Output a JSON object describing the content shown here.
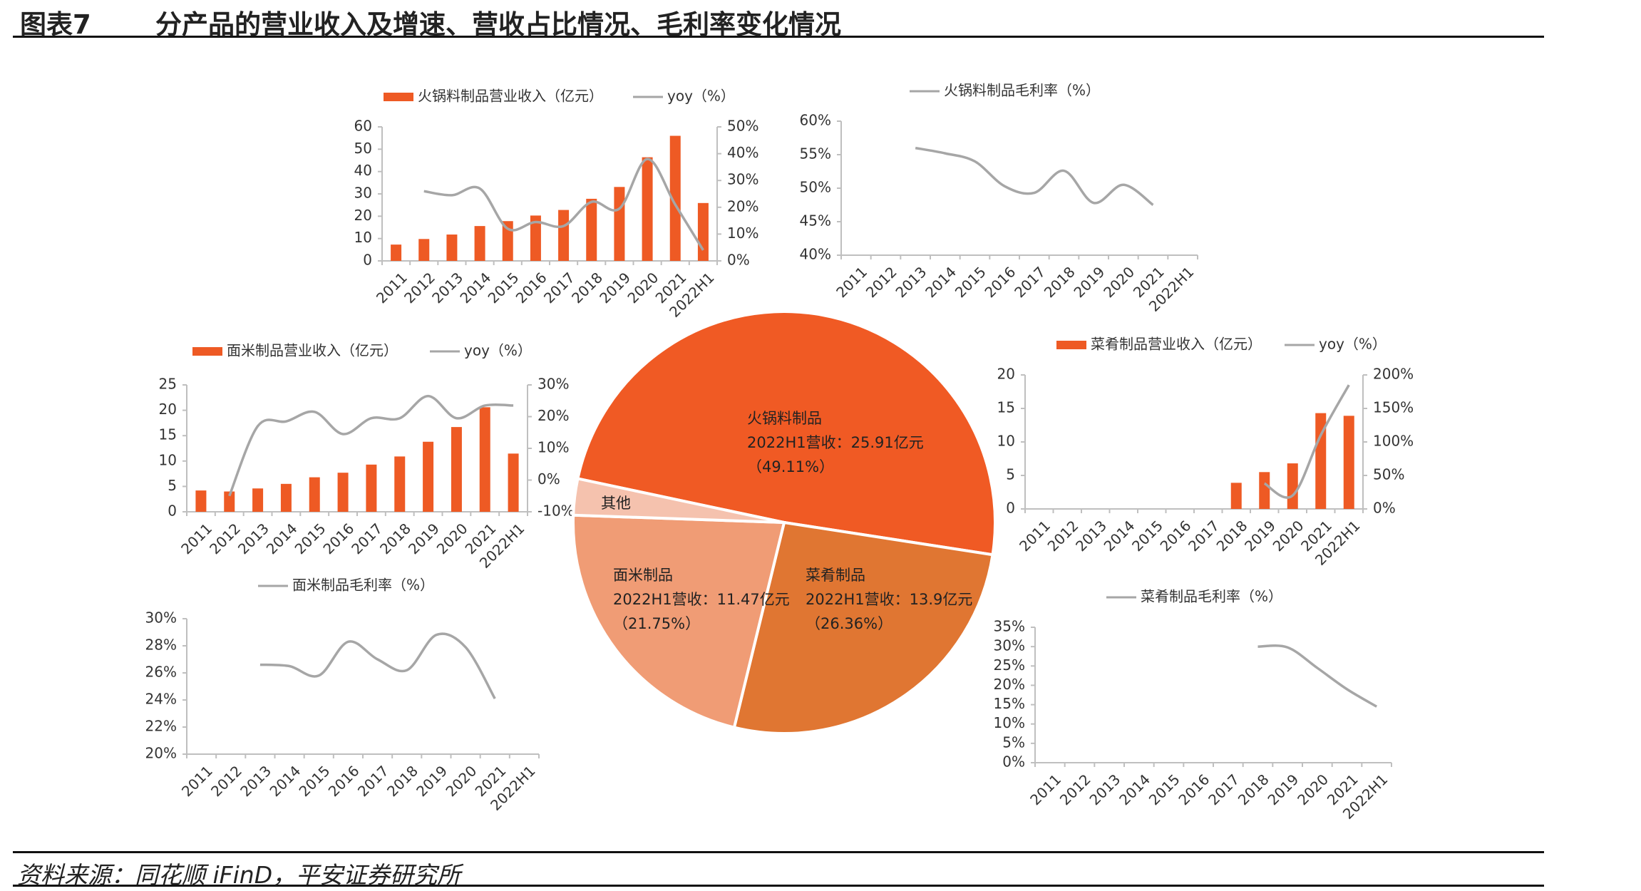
{
  "figure": {
    "number": "图表7",
    "title": "分产品的营业收入及增速、营收占比情况、毛利率变化情况",
    "source": "资料来源：同花顺 iFinD，平安证券研究所"
  },
  "colors": {
    "bar": "#EE5A24",
    "line": "#A6A6A6",
    "axis": "#BFBFBF",
    "text": "#333333",
    "pie": [
      "#F05A24",
      "#E07632",
      "#F09C75",
      "#F5C2AE"
    ]
  },
  "chart_data": [
    {
      "id": "hotpot-revenue",
      "type": "bar",
      "categories": [
        "2011",
        "2012",
        "2013",
        "2014",
        "2015",
        "2016",
        "2017",
        "2018",
        "2019",
        "2020",
        "2021",
        "2022H1"
      ],
      "series": [
        {
          "name": "火锅料制品营业收入（亿元）",
          "type": "bar",
          "axis": "left",
          "values": [
            7.3,
            9.8,
            11.8,
            15.6,
            17.8,
            20.3,
            22.8,
            27.8,
            33.1,
            46.4,
            56.0,
            25.91
          ]
        },
        {
          "name": "yoy（%）",
          "type": "line",
          "axis": "right",
          "values": [
            null,
            26.0,
            24.5,
            27.0,
            12.0,
            14.5,
            13.0,
            22.0,
            19.5,
            38.0,
            21.0,
            4.0
          ]
        }
      ],
      "yleft": {
        "min": 0,
        "max": 60,
        "ticks": [
          "0",
          "10",
          "20",
          "30",
          "40",
          "50",
          "60"
        ]
      },
      "yright": {
        "min": 0,
        "max": 50,
        "ticks": [
          "0%",
          "10%",
          "20%",
          "30%",
          "40%",
          "50%"
        ]
      }
    },
    {
      "id": "hotpot-margin",
      "type": "line",
      "categories": [
        "2011",
        "2012",
        "2013",
        "2014",
        "2015",
        "2016",
        "2017",
        "2018",
        "2019",
        "2020",
        "2021",
        "2022H1"
      ],
      "series": [
        {
          "name": "火锅料制品毛利率（%）",
          "type": "line",
          "axis": "left",
          "values": [
            null,
            null,
            56.0,
            55.2,
            54.0,
            50.3,
            49.3,
            52.6,
            47.8,
            50.5,
            47.5,
            null
          ]
        }
      ],
      "yleft": {
        "min": 40,
        "max": 60,
        "ticks": [
          "40%",
          "45%",
          "50%",
          "55%",
          "60%"
        ]
      }
    },
    {
      "id": "noodle-revenue",
      "type": "bar",
      "categories": [
        "2011",
        "2012",
        "2013",
        "2014",
        "2015",
        "2016",
        "2017",
        "2018",
        "2019",
        "2020",
        "2021",
        "2022H1"
      ],
      "series": [
        {
          "name": "面米制品营业收入（亿元）",
          "type": "bar",
          "axis": "left",
          "values": [
            4.2,
            4.0,
            4.6,
            5.5,
            6.8,
            7.7,
            9.3,
            10.9,
            13.8,
            16.7,
            20.6,
            11.47
          ]
        },
        {
          "name": "yoy（%）",
          "type": "line",
          "axis": "right",
          "values": [
            null,
            -5.0,
            17.0,
            18.5,
            21.5,
            14.5,
            19.5,
            19.5,
            26.5,
            19.5,
            23.5,
            23.5
          ]
        }
      ],
      "yleft": {
        "min": 0,
        "max": 25,
        "ticks": [
          "0",
          "5",
          "10",
          "15",
          "20",
          "25"
        ]
      },
      "yright": {
        "min": -10,
        "max": 30,
        "ticks": [
          "-10%",
          "0%",
          "10%",
          "20%",
          "30%"
        ]
      }
    },
    {
      "id": "noodle-margin",
      "type": "line",
      "categories": [
        "2011",
        "2012",
        "2013",
        "2014",
        "2015",
        "2016",
        "2017",
        "2018",
        "2019",
        "2020",
        "2021",
        "2022H1"
      ],
      "series": [
        {
          "name": "面米制品毛利率（%）",
          "type": "line",
          "axis": "left",
          "values": [
            null,
            null,
            26.6,
            26.5,
            25.8,
            28.3,
            27.0,
            26.2,
            28.8,
            27.9,
            24.1,
            null
          ]
        }
      ],
      "yleft": {
        "min": 20,
        "max": 30,
        "ticks": [
          "20%",
          "22%",
          "24%",
          "26%",
          "28%",
          "30%"
        ]
      }
    },
    {
      "id": "dish-revenue",
      "type": "bar",
      "categories": [
        "2011",
        "2012",
        "2013",
        "2014",
        "2015",
        "2016",
        "2017",
        "2018",
        "2019",
        "2020",
        "2021",
        "2022H1"
      ],
      "series": [
        {
          "name": "菜肴制品营业收入（亿元）",
          "type": "bar",
          "axis": "left",
          "values": [
            null,
            null,
            null,
            null,
            null,
            null,
            null,
            3.9,
            5.5,
            6.8,
            14.3,
            13.9
          ]
        },
        {
          "name": "yoy（%）",
          "type": "line",
          "axis": "right",
          "values": [
            null,
            null,
            null,
            null,
            null,
            null,
            null,
            null,
            38.0,
            20.0,
            110.0,
            185.0
          ]
        }
      ],
      "yleft": {
        "min": 0,
        "max": 20,
        "ticks": [
          "0",
          "5",
          "10",
          "15",
          "20"
        ]
      },
      "yright": {
        "min": 0,
        "max": 200,
        "ticks": [
          "0%",
          "50%",
          "100%",
          "150%",
          "200%"
        ]
      }
    },
    {
      "id": "dish-margin",
      "type": "line",
      "categories": [
        "2011",
        "2012",
        "2013",
        "2014",
        "2015",
        "2016",
        "2017",
        "2018",
        "2019",
        "2020",
        "2021",
        "2022H1"
      ],
      "series": [
        {
          "name": "菜肴制品毛利率（%）",
          "type": "line",
          "axis": "left",
          "values": [
            null,
            null,
            null,
            null,
            null,
            null,
            null,
            30.0,
            29.8,
            24.5,
            19.0,
            14.5
          ]
        }
      ],
      "yleft": {
        "min": 0,
        "max": 35,
        "ticks": [
          "0%",
          "5%",
          "10%",
          "15%",
          "20%",
          "25%",
          "30%",
          "35%"
        ]
      }
    },
    {
      "id": "revenue-share-pie",
      "type": "pie",
      "slices": [
        {
          "name": "火锅料制品",
          "lines": [
            "火锅料制品",
            "2022H1营收：25.91亿元",
            "（49.11%）"
          ],
          "value": 49.11
        },
        {
          "name": "菜肴制品",
          "lines": [
            "菜肴制品",
            "2022H1营收：13.9亿元",
            "（26.36%）"
          ],
          "value": 26.36
        },
        {
          "name": "面米制品",
          "lines": [
            "面米制品",
            "2022H1营收：11.47亿元",
            "（21.75%）"
          ],
          "value": 21.75
        },
        {
          "name": "其他",
          "lines": [
            "其他"
          ],
          "value": 2.78
        }
      ]
    }
  ]
}
